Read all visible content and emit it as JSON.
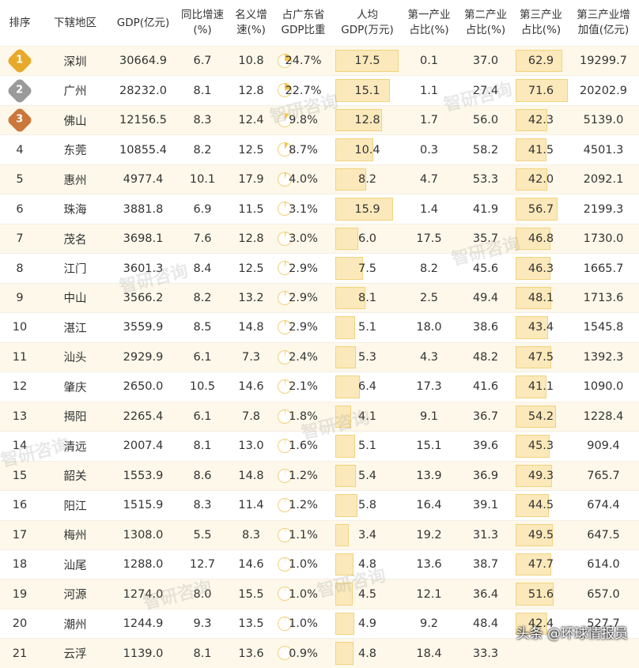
{
  "table": {
    "header": [
      "排序",
      "下辖地区",
      "GDP(亿元)",
      "同比增速\n(%)",
      "名义增\n速(%)",
      "占广东省\nGDP比重",
      "人均\nGDP(万元)",
      "第一产业\n占比(%)",
      "第二产业\n占比(%)",
      "第三产业\n占比(%)",
      "第三产业增\n加值(亿元)"
    ],
    "rows": [
      [
        "1",
        "深圳",
        "30664.9",
        "6.7",
        "10.8",
        "24.7%",
        "17.5",
        "0.1",
        "37.0",
        "62.9",
        "19299.7"
      ],
      [
        "2",
        "广州",
        "28232.0",
        "8.1",
        "12.8",
        "22.7%",
        "15.1",
        "1.1",
        "27.4",
        "71.6",
        "20202.9"
      ],
      [
        "3",
        "佛山",
        "12156.5",
        "8.3",
        "12.4",
        "9.8%",
        "12.8",
        "1.7",
        "56.0",
        "42.3",
        "5139.0"
      ],
      [
        "4",
        "东莞",
        "10855.4",
        "8.2",
        "12.5",
        "8.7%",
        "10.4",
        "0.3",
        "58.2",
        "41.5",
        "4501.3"
      ],
      [
        "5",
        "惠州",
        "4977.4",
        "10.1",
        "17.9",
        "4.0%",
        "8.2",
        "4.7",
        "53.3",
        "42.0",
        "2092.1"
      ],
      [
        "6",
        "珠海",
        "3881.8",
        "6.9",
        "11.5",
        "3.1%",
        "15.9",
        "1.4",
        "41.9",
        "56.7",
        "2199.3"
      ],
      [
        "7",
        "茂名",
        "3698.1",
        "7.6",
        "12.8",
        "3.0%",
        "6.0",
        "17.5",
        "35.7",
        "46.8",
        "1730.0"
      ],
      [
        "8",
        "江门",
        "3601.3",
        "8.4",
        "12.5",
        "2.9%",
        "7.5",
        "8.2",
        "45.6",
        "46.3",
        "1665.7"
      ],
      [
        "9",
        "中山",
        "3566.2",
        "8.2",
        "13.2",
        "2.9%",
        "8.1",
        "2.5",
        "49.4",
        "48.1",
        "1713.6"
      ],
      [
        "10",
        "湛江",
        "3559.9",
        "8.5",
        "14.8",
        "2.9%",
        "5.1",
        "18.0",
        "38.6",
        "43.4",
        "1545.8"
      ],
      [
        "11",
        "汕头",
        "2929.9",
        "6.1",
        "7.3",
        "2.4%",
        "5.3",
        "4.3",
        "48.2",
        "47.5",
        "1392.3"
      ],
      [
        "12",
        "肇庆",
        "2650.0",
        "10.5",
        "14.6",
        "2.1%",
        "6.4",
        "17.3",
        "41.6",
        "41.1",
        "1090.0"
      ],
      [
        "13",
        "揭阳",
        "2265.4",
        "6.1",
        "7.8",
        "1.8%",
        "4.1",
        "9.1",
        "36.7",
        "54.2",
        "1228.4"
      ],
      [
        "14",
        "清远",
        "2007.4",
        "8.1",
        "13.0",
        "1.6%",
        "5.1",
        "15.1",
        "39.6",
        "45.3",
        "909.4"
      ],
      [
        "15",
        "韶关",
        "1553.9",
        "8.6",
        "14.8",
        "1.2%",
        "5.4",
        "13.9",
        "36.9",
        "49.3",
        "765.7"
      ],
      [
        "16",
        "阳江",
        "1515.9",
        "8.3",
        "11.4",
        "1.2%",
        "5.8",
        "16.4",
        "39.1",
        "44.5",
        "674.4"
      ],
      [
        "17",
        "梅州",
        "1308.0",
        "5.5",
        "8.3",
        "1.1%",
        "3.4",
        "19.2",
        "31.3",
        "49.5",
        "647.5"
      ],
      [
        "18",
        "汕尾",
        "1288.0",
        "12.7",
        "14.6",
        "1.0%",
        "4.8",
        "13.6",
        "38.7",
        "47.7",
        "614.0"
      ],
      [
        "19",
        "河源",
        "1274.0",
        "8.0",
        "15.5",
        "1.0%",
        "4.5",
        "12.1",
        "36.4",
        "51.6",
        "657.0"
      ],
      [
        "20",
        "潮州",
        "1244.9",
        "9.3",
        "13.5",
        "1.0%",
        "4.9",
        "9.2",
        "48.4",
        "42.4",
        "527.7"
      ],
      [
        "21",
        "云浮",
        "1139.0",
        "8.1",
        "13.6",
        "0.9%",
        "4.8",
        "18.4",
        "33.3",
        null,
        null
      ]
    ]
  },
  "watermark": "智研咨询",
  "footer": "头条 @环球情报员"
}
